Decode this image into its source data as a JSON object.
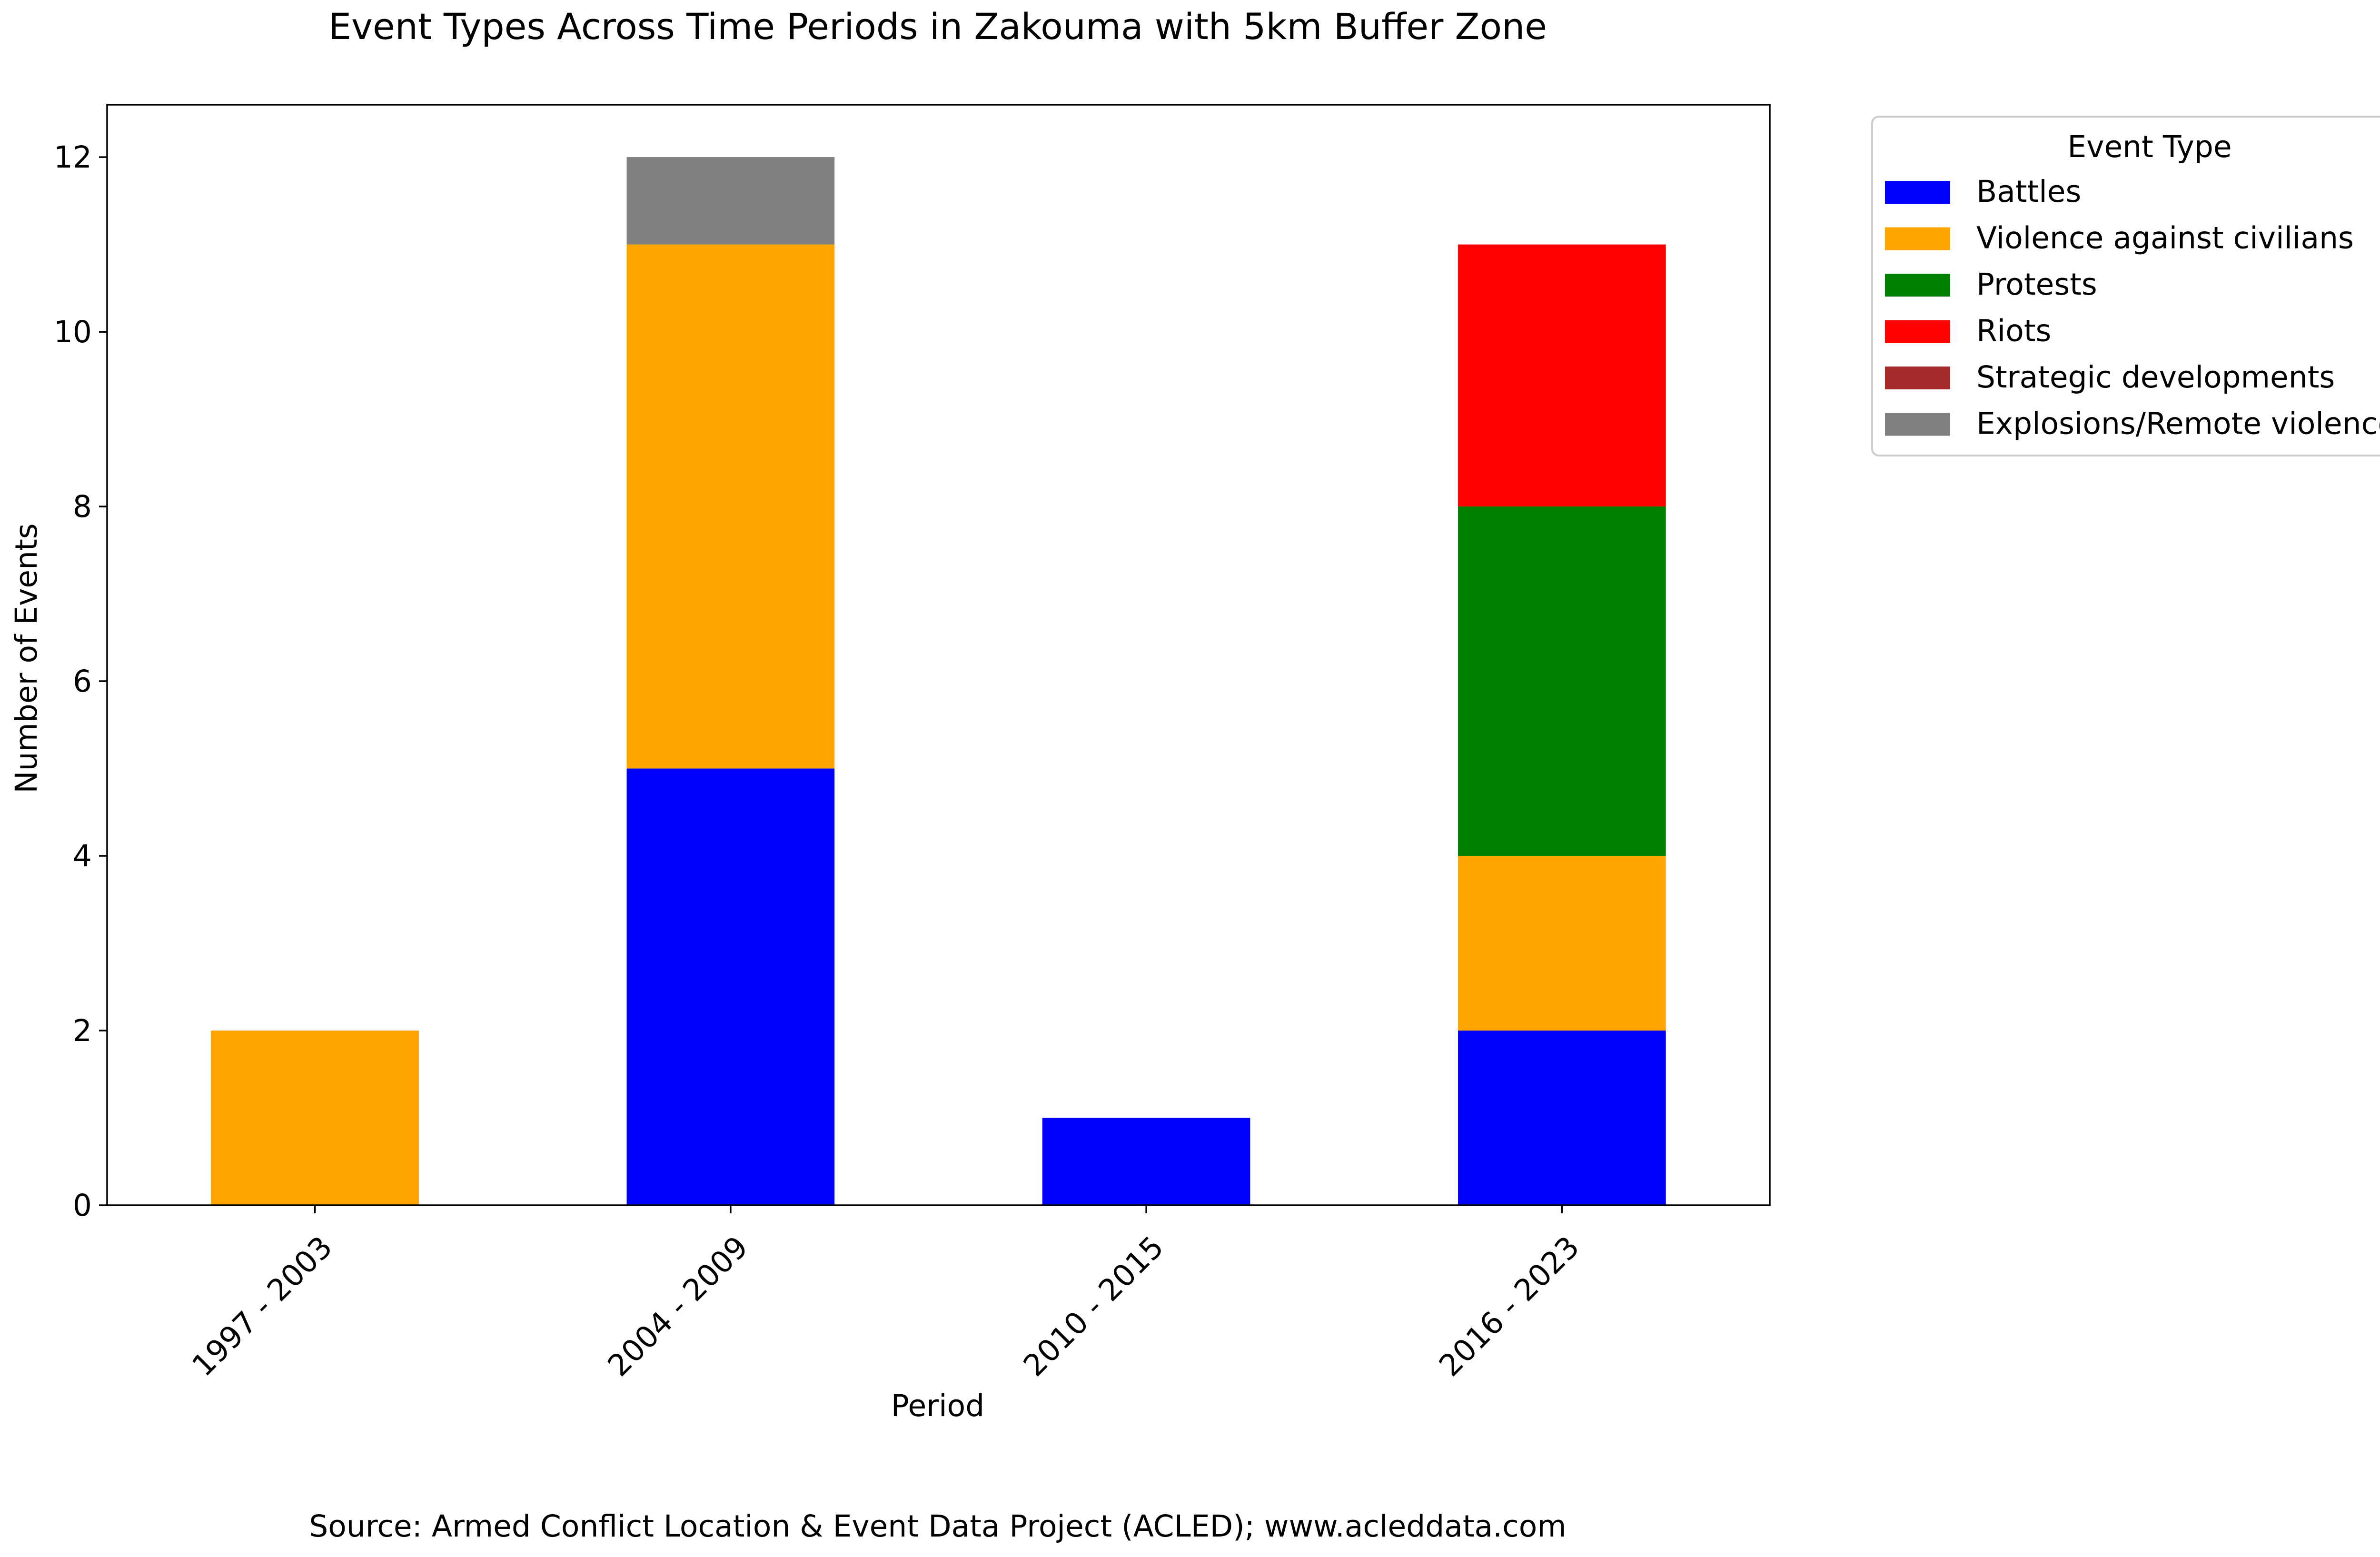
{
  "chart_data": {
    "type": "bar",
    "stacked": true,
    "title": "Event Types Across Time Periods in Zakouma with 5km Buffer Zone",
    "xlabel": "Period",
    "ylabel": "Number of Events",
    "categories": [
      "1997 - 2003",
      "2004 - 2009",
      "2010 - 2015",
      "2016 - 2023"
    ],
    "ylim": [
      0,
      12.6
    ],
    "yticks": [
      0,
      2,
      4,
      6,
      8,
      10,
      12
    ],
    "grid": false,
    "legend": {
      "title": "Event Type",
      "placement": "outside-top-right"
    },
    "series": [
      {
        "name": "Battles",
        "color": "#0000ff",
        "values": [
          0,
          5,
          1,
          2
        ]
      },
      {
        "name": "Violence against civilians",
        "color": "#ffa500",
        "values": [
          2,
          6,
          0,
          2
        ]
      },
      {
        "name": "Protests",
        "color": "#008000",
        "values": [
          0,
          0,
          0,
          4
        ]
      },
      {
        "name": "Riots",
        "color": "#ff0000",
        "values": [
          0,
          0,
          0,
          3
        ]
      },
      {
        "name": "Strategic developments",
        "color": "#a52a2a",
        "values": [
          0,
          0,
          0,
          0
        ]
      },
      {
        "name": "Explosions/Remote violence",
        "color": "#808080",
        "values": [
          0,
          1,
          0,
          0
        ]
      }
    ],
    "source_note": "Source: Armed Conflict Location & Event Data Project (ACLED); www.acleddata.com"
  }
}
